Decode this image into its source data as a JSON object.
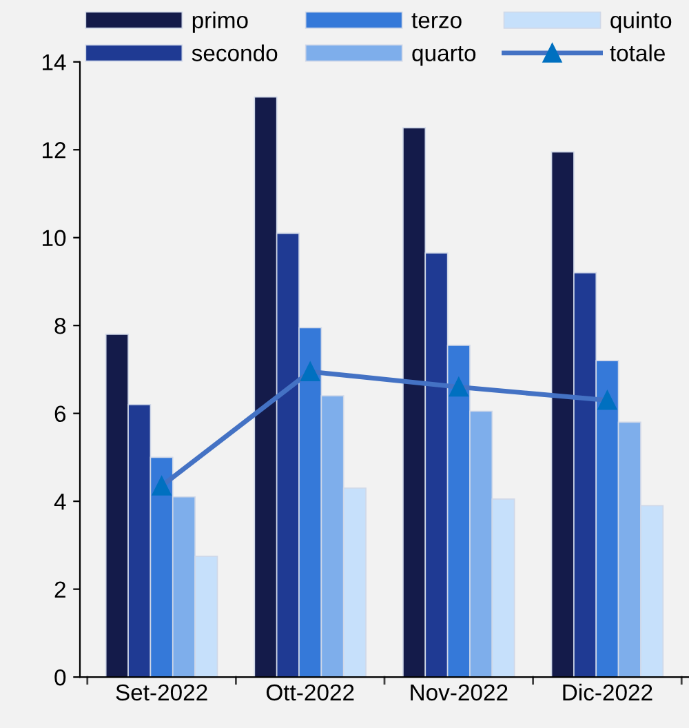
{
  "chart_data": {
    "type": "bar",
    "categories": [
      "Set-2022",
      "Ott-2022",
      "Nov-2022",
      "Dic-2022"
    ],
    "series": [
      {
        "name": "primo",
        "color": "#141b4a",
        "values": [
          7.8,
          13.2,
          12.5,
          11.95
        ]
      },
      {
        "name": "secondo",
        "color": "#1f3a93",
        "values": [
          6.2,
          10.1,
          9.65,
          9.2
        ]
      },
      {
        "name": "terzo",
        "color": "#3579d9",
        "values": [
          5.0,
          7.95,
          7.55,
          7.2
        ]
      },
      {
        "name": "quarto",
        "color": "#7eaeeb",
        "values": [
          4.1,
          6.4,
          6.05,
          5.8
        ]
      },
      {
        "name": "quinto",
        "color": "#c6e0fb",
        "values": [
          2.75,
          4.3,
          4.05,
          3.9
        ]
      },
      {
        "name": "totale",
        "type": "line",
        "color": "#4472c4",
        "marker": "triangle",
        "values": [
          4.35,
          6.95,
          6.6,
          6.3
        ]
      }
    ],
    "ylim": [
      0,
      14
    ],
    "yticks": [
      0,
      2,
      4,
      6,
      8,
      10,
      12,
      14
    ],
    "grid": false,
    "legend": "top"
  }
}
